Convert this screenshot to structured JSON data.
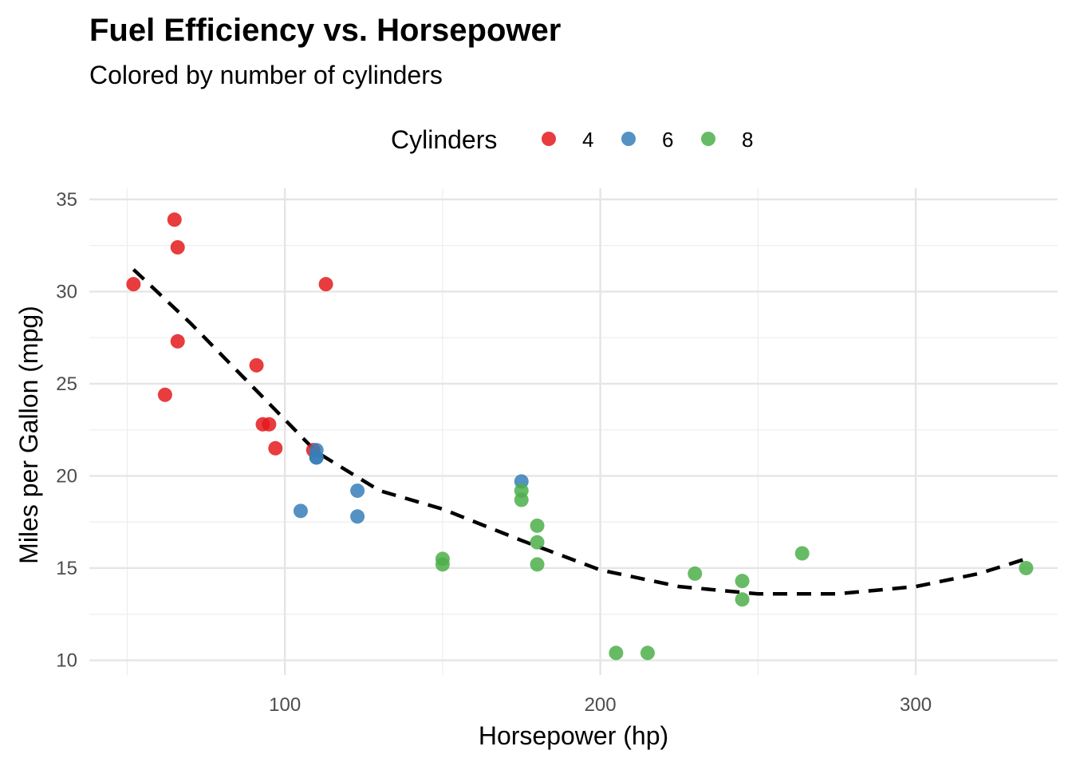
{
  "chart_data": {
    "type": "scatter",
    "title": "Fuel Efficiency vs. Horsepower",
    "subtitle": "Colored by number of cylinders",
    "xlabel": "Horsepower (hp)",
    "ylabel": "Miles per Gallon (mpg)",
    "xlim": [
      38,
      345
    ],
    "ylim": [
      9.2,
      35.6
    ],
    "x_ticks": [
      100,
      200,
      300
    ],
    "x_minor_ticks": [
      50,
      150,
      250
    ],
    "y_ticks": [
      10,
      15,
      20,
      25,
      30,
      35
    ],
    "y_minor_ticks": [
      12.5,
      17.5,
      22.5,
      27.5,
      32.5
    ],
    "grid": true,
    "legend": {
      "title": "Cylinders",
      "position": "top",
      "entries": [
        "4",
        "6",
        "8"
      ]
    },
    "series": [
      {
        "name": "4",
        "color": "#e41a1c",
        "points": [
          {
            "x": 93,
            "y": 22.8
          },
          {
            "x": 62,
            "y": 24.4
          },
          {
            "x": 95,
            "y": 22.8
          },
          {
            "x": 66,
            "y": 32.4
          },
          {
            "x": 52,
            "y": 30.4
          },
          {
            "x": 65,
            "y": 33.9
          },
          {
            "x": 97,
            "y": 21.5
          },
          {
            "x": 66,
            "y": 27.3
          },
          {
            "x": 91,
            "y": 26.0
          },
          {
            "x": 113,
            "y": 30.4
          },
          {
            "x": 109,
            "y": 21.4
          }
        ]
      },
      {
        "name": "6",
        "color": "#377eb8",
        "points": [
          {
            "x": 110,
            "y": 21.0
          },
          {
            "x": 110,
            "y": 21.0
          },
          {
            "x": 110,
            "y": 21.4
          },
          {
            "x": 105,
            "y": 18.1
          },
          {
            "x": 123,
            "y": 19.2
          },
          {
            "x": 123,
            "y": 17.8
          },
          {
            "x": 175,
            "y": 19.7
          }
        ]
      },
      {
        "name": "8",
        "color": "#4daf4a",
        "points": [
          {
            "x": 175,
            "y": 18.7
          },
          {
            "x": 245,
            "y": 14.3
          },
          {
            "x": 180,
            "y": 16.4
          },
          {
            "x": 180,
            "y": 17.3
          },
          {
            "x": 180,
            "y": 15.2
          },
          {
            "x": 205,
            "y": 10.4
          },
          {
            "x": 215,
            "y": 10.4
          },
          {
            "x": 230,
            "y": 14.7
          },
          {
            "x": 150,
            "y": 15.5
          },
          {
            "x": 150,
            "y": 15.2
          },
          {
            "x": 245,
            "y": 13.3
          },
          {
            "x": 175,
            "y": 19.2
          },
          {
            "x": 264,
            "y": 15.8
          },
          {
            "x": 335,
            "y": 15.0
          }
        ]
      }
    ],
    "trend_line": {
      "style": "dashed",
      "color": "#000000",
      "points": [
        {
          "x": 52,
          "y": 31.2
        },
        {
          "x": 70,
          "y": 28.3
        },
        {
          "x": 90,
          "y": 24.8
        },
        {
          "x": 110,
          "y": 21.3
        },
        {
          "x": 130,
          "y": 19.2
        },
        {
          "x": 150,
          "y": 18.2
        },
        {
          "x": 175,
          "y": 16.5
        },
        {
          "x": 200,
          "y": 14.9
        },
        {
          "x": 225,
          "y": 14.0
        },
        {
          "x": 250,
          "y": 13.6
        },
        {
          "x": 275,
          "y": 13.6
        },
        {
          "x": 300,
          "y": 14.0
        },
        {
          "x": 320,
          "y": 14.7
        },
        {
          "x": 335,
          "y": 15.5
        }
      ]
    }
  }
}
